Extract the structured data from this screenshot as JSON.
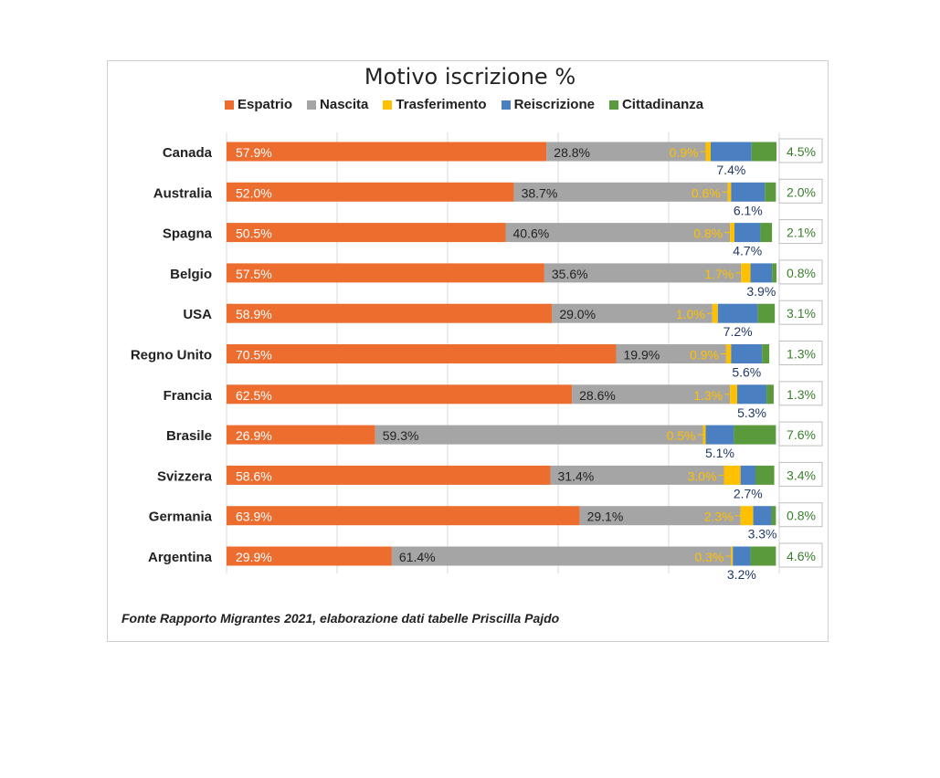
{
  "colors": {
    "espatrio": "#ed6d2f",
    "nascita": "#a5a5a5",
    "trasferimento": "#ffc000",
    "reiscrizione": "#4a7fc1",
    "cittadinanza": "#5a9a3c"
  },
  "source_note": "Fonte Rapporto Migrantes 2021, elaborazione dati tabelle Priscilla Pajdo",
  "chart_data": {
    "type": "bar",
    "orientation": "horizontal",
    "stacked": true,
    "title": "Motivo iscrizione %",
    "legend_position": "top",
    "categories": [
      "Canada",
      "Australia",
      "Spagna",
      "Belgio",
      "USA",
      "Regno Unito",
      "Francia",
      "Brasile",
      "Svizzera",
      "Germania",
      "Argentina"
    ],
    "series": [
      {
        "name": "Espatrio",
        "color": "#ed6d2f",
        "values": [
          57.9,
          52.0,
          50.5,
          57.5,
          58.9,
          70.5,
          62.5,
          26.9,
          58.6,
          63.9,
          29.9
        ]
      },
      {
        "name": "Nascita",
        "color": "#a5a5a5",
        "values": [
          28.8,
          38.7,
          40.6,
          35.6,
          29.0,
          19.9,
          28.6,
          59.3,
          31.4,
          29.1,
          61.4
        ]
      },
      {
        "name": "Trasferimento",
        "color": "#ffc000",
        "values": [
          0.9,
          0.6,
          0.8,
          1.7,
          1.0,
          0.9,
          1.3,
          0.5,
          3.0,
          2.3,
          0.3
        ]
      },
      {
        "name": "Reiscrizione",
        "color": "#4a7fc1",
        "values": [
          7.4,
          6.1,
          4.7,
          3.9,
          7.2,
          5.6,
          5.3,
          5.1,
          2.7,
          3.3,
          3.2
        ]
      },
      {
        "name": "Cittadinanza",
        "color": "#5a9a3c",
        "values": [
          4.5,
          2.0,
          2.1,
          0.8,
          3.1,
          1.3,
          1.3,
          7.6,
          3.4,
          0.8,
          4.6
        ]
      }
    ],
    "labels": {
      "espatrio": [
        "57.9%",
        "52.0%",
        "50.5%",
        "57.5%",
        "58.9%",
        "70.5%",
        "62.5%",
        "26.9%",
        "58.6%",
        "63.9%",
        "29.9%"
      ],
      "nascita": [
        "28.8%",
        "38.7%",
        "40.6%",
        "35.6%",
        "29.0%",
        "19.9%",
        "28.6%",
        "59.3%",
        "31.4%",
        "29.1%",
        "61.4%"
      ],
      "trasferimento": [
        "0.9%",
        "0.6%",
        "0.8%",
        "1.7%",
        "1.0%",
        "0.9%",
        "1.3%",
        "0.5%",
        "3.0%",
        "2.3%",
        "0.3%"
      ],
      "reiscrizione": [
        "7.4%",
        "6.1%",
        "4.7%",
        "3.9%",
        "7.2%",
        "5.6%",
        "5.3%",
        "5.1%",
        "2.7%",
        "3.3%",
        "3.2%"
      ],
      "cittadinanza": [
        "4.5%",
        "2.0%",
        "2.1%",
        "0.8%",
        "3.1%",
        "1.3%",
        "1.3%",
        "7.6%",
        "3.4%",
        "0.8%",
        "4.6%"
      ]
    },
    "xlim": [
      0,
      100
    ],
    "grid": true
  }
}
